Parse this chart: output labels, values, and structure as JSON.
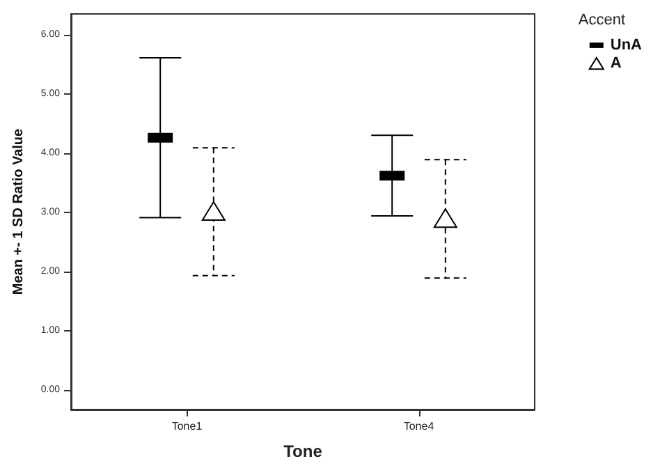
{
  "chart_data": {
    "type": "scatter",
    "xlabel": "Tone",
    "ylabel": "Mean +- 1 SD Ratio Value",
    "legend_title": "Accent",
    "legend": "top right",
    "grid": false,
    "categories": [
      "Tone1",
      "Tone4"
    ],
    "ylim": [
      -0.33,
      6.35
    ],
    "yticks": [
      {
        "value": 0,
        "label": "0.00"
      },
      {
        "value": 1,
        "label": "1.00"
      },
      {
        "value": 2,
        "label": "2.00"
      },
      {
        "value": 3,
        "label": "3.00"
      },
      {
        "value": 4,
        "label": "4.00"
      },
      {
        "value": 5,
        "label": "5.00"
      },
      {
        "value": 6,
        "label": "6.00"
      }
    ],
    "series": [
      {
        "name": "UnA",
        "color": "#000000",
        "marker": "square",
        "line_style": "solid",
        "values": [
          4.26,
          3.62
        ],
        "errors": [
          1.35,
          0.68
        ]
      },
      {
        "name": "A",
        "color": "#000000",
        "marker": "triangle",
        "line_style": "dashed",
        "values": [
          3.01,
          2.89
        ],
        "errors": [
          1.08,
          1.0
        ]
      }
    ]
  }
}
